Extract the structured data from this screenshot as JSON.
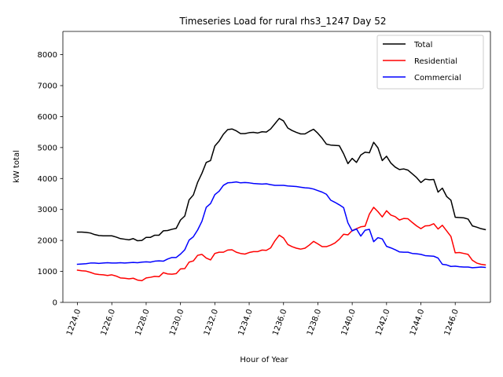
{
  "chart_data": {
    "type": "line",
    "title": "Timeseries Load for rural rhs3_1247  Day 52",
    "xlabel": "Hour of Year",
    "ylabel": "kW total",
    "xlim": [
      1223.15,
      1248.05
    ],
    "ylim": [
      0,
      8750
    ],
    "xticks": [
      1224,
      1226,
      1228,
      1230,
      1232,
      1234,
      1236,
      1238,
      1240,
      1242,
      1244,
      1246
    ],
    "xtick_labels": [
      "1224.0",
      "1226.0",
      "1228.0",
      "1230.0",
      "1232.0",
      "1234.0",
      "1236.0",
      "1238.0",
      "1240.0",
      "1242.0",
      "1244.0",
      "1246.0"
    ],
    "yticks": [
      0,
      1000,
      2000,
      3000,
      4000,
      5000,
      6000,
      7000,
      8000
    ],
    "ytick_labels": [
      "0",
      "1000",
      "2000",
      "3000",
      "4000",
      "5000",
      "6000",
      "7000",
      "8000"
    ],
    "grid": false,
    "legend_position": "top-right",
    "x": [
      1224.0,
      1224.25,
      1224.5,
      1224.75,
      1225.0,
      1225.25,
      1225.5,
      1225.75,
      1226.0,
      1226.25,
      1226.5,
      1226.75,
      1227.0,
      1227.25,
      1227.5,
      1227.75,
      1228.0,
      1228.25,
      1228.5,
      1228.75,
      1229.0,
      1229.25,
      1229.5,
      1229.75,
      1230.0,
      1230.25,
      1230.5,
      1230.75,
      1231.0,
      1231.25,
      1231.5,
      1231.75,
      1232.0,
      1232.25,
      1232.5,
      1232.75,
      1233.0,
      1233.25,
      1233.5,
      1233.75,
      1234.0,
      1234.25,
      1234.5,
      1234.75,
      1235.0,
      1235.25,
      1235.5,
      1235.75,
      1236.0,
      1236.25,
      1236.5,
      1236.75,
      1237.0,
      1237.25,
      1237.5,
      1237.75,
      1238.0,
      1238.25,
      1238.5,
      1238.75,
      1239.0,
      1239.25,
      1239.5,
      1239.75,
      1240.0,
      1240.25,
      1240.5,
      1240.75,
      1241.0,
      1241.25,
      1241.5,
      1241.75,
      1242.0,
      1242.25,
      1242.5,
      1242.75,
      1243.0,
      1243.25,
      1243.5,
      1243.75,
      1244.0,
      1244.25,
      1244.5,
      1244.75,
      1245.0,
      1245.25,
      1245.5,
      1245.75,
      1246.0,
      1246.25,
      1246.5,
      1246.75,
      1247.0,
      1247.25,
      1247.5,
      1247.75
    ],
    "series": [
      {
        "name": "Total",
        "color": "#000000",
        "values": [
          2270,
          2270,
          2260,
          2240,
          2190,
          2160,
          2150,
          2150,
          2150,
          2110,
          2060,
          2040,
          2020,
          2060,
          1990,
          2000,
          2100,
          2100,
          2170,
          2170,
          2310,
          2320,
          2360,
          2390,
          2660,
          2790,
          3310,
          3470,
          3880,
          4170,
          4520,
          4580,
          5050,
          5210,
          5430,
          5580,
          5600,
          5540,
          5450,
          5450,
          5480,
          5490,
          5470,
          5510,
          5500,
          5600,
          5770,
          5940,
          5860,
          5630,
          5550,
          5490,
          5440,
          5440,
          5520,
          5590,
          5460,
          5300,
          5110,
          5080,
          5070,
          5060,
          4800,
          4480,
          4650,
          4520,
          4760,
          4850,
          4830,
          5170,
          4990,
          4580,
          4720,
          4500,
          4370,
          4290,
          4310,
          4270,
          4150,
          4030,
          3870,
          3980,
          3960,
          3970,
          3560,
          3690,
          3420,
          3300,
          2750,
          2740,
          2730,
          2690,
          2470,
          2430,
          2380,
          2350
        ]
      },
      {
        "name": "Residential",
        "color": "#ff0000",
        "values": [
          1040,
          1020,
          1010,
          970,
          920,
          900,
          890,
          870,
          890,
          850,
          790,
          780,
          760,
          780,
          720,
          700,
          790,
          810,
          840,
          830,
          960,
          920,
          910,
          930,
          1080,
          1090,
          1300,
          1340,
          1520,
          1550,
          1430,
          1370,
          1580,
          1620,
          1620,
          1690,
          1700,
          1620,
          1580,
          1560,
          1610,
          1640,
          1640,
          1690,
          1680,
          1760,
          1990,
          2170,
          2080,
          1870,
          1800,
          1750,
          1720,
          1750,
          1850,
          1970,
          1890,
          1800,
          1800,
          1850,
          1920,
          2040,
          2200,
          2180,
          2320,
          2380,
          2440,
          2460,
          2850,
          3070,
          2930,
          2760,
          2960,
          2820,
          2770,
          2660,
          2710,
          2700,
          2580,
          2470,
          2380,
          2470,
          2480,
          2540,
          2370,
          2490,
          2310,
          2130,
          1600,
          1610,
          1580,
          1550,
          1360,
          1270,
          1230,
          1210
        ]
      },
      {
        "name": "Commercial",
        "color": "#0000ff",
        "values": [
          1230,
          1240,
          1250,
          1270,
          1270,
          1260,
          1270,
          1280,
          1270,
          1270,
          1280,
          1270,
          1280,
          1290,
          1280,
          1300,
          1310,
          1300,
          1330,
          1340,
          1330,
          1400,
          1450,
          1450,
          1560,
          1700,
          2010,
          2120,
          2340,
          2620,
          3070,
          3190,
          3480,
          3590,
          3780,
          3860,
          3870,
          3890,
          3860,
          3870,
          3860,
          3840,
          3830,
          3820,
          3830,
          3800,
          3780,
          3780,
          3780,
          3760,
          3750,
          3740,
          3720,
          3700,
          3690,
          3660,
          3610,
          3560,
          3490,
          3300,
          3230,
          3150,
          3060,
          2570,
          2310,
          2370,
          2140,
          2330,
          2360,
          1960,
          2090,
          2050,
          1810,
          1760,
          1700,
          1630,
          1620,
          1620,
          1580,
          1570,
          1550,
          1510,
          1500,
          1490,
          1430,
          1230,
          1210,
          1160,
          1170,
          1150,
          1140,
          1140,
          1120,
          1130,
          1140,
          1130
        ]
      }
    ]
  }
}
